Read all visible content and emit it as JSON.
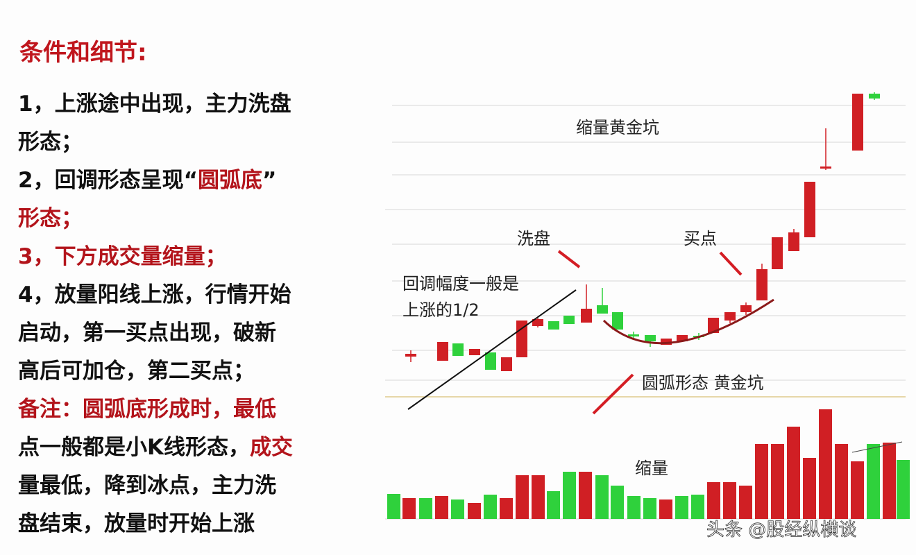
{
  "header": {
    "title": "条件和细节:"
  },
  "lines": [
    [
      {
        "text": "1，上涨途中出现，主力洗盘",
        "color": "#111111"
      }
    ],
    [
      {
        "text": "形态；",
        "color": "#111111"
      }
    ],
    [
      {
        "text": "2，回调形态呈现“",
        "color": "#111111"
      },
      {
        "text": "圆弧底",
        "color": "#b3141b"
      },
      {
        "text": "”",
        "color": "#111111"
      }
    ],
    [
      {
        "text": "形态；",
        "color": "#b3141b"
      }
    ],
    [
      {
        "text": "3，下方成交量缩量；",
        "color": "#b3141b"
      }
    ],
    [
      {
        "text": "4，放量阳线上涨，行情开始",
        "color": "#111111"
      }
    ],
    [
      {
        "text": "启动，第一买点出现，破新",
        "color": "#111111"
      }
    ],
    [
      {
        "text": "高后可加仓，第二买点；",
        "color": "#111111"
      }
    ],
    [
      {
        "text": "备注：圆弧底形成时，最低",
        "color": "#b3141b"
      }
    ],
    [
      {
        "text": "点一般都是小K线形态，",
        "color": "#111111"
      },
      {
        "text": "成交",
        "color": "#b3141b"
      }
    ],
    [
      {
        "text": "量最低，降到冰点，主力洗",
        "color": "#111111"
      }
    ],
    [
      {
        "text": "盘结束，放量时开始上涨",
        "color": "#111111"
      }
    ]
  ],
  "annotations": {
    "golden_pit": "缩量黄金坑",
    "wash": "洗盘",
    "buy_point": "买点",
    "pullback_1": "回调幅度一般是",
    "pullback_2": "上涨的1/2",
    "arc": "圆弧形态 黄金坑",
    "shrink": "缩量"
  },
  "watermark": "头条 @股经纵横谈"
}
